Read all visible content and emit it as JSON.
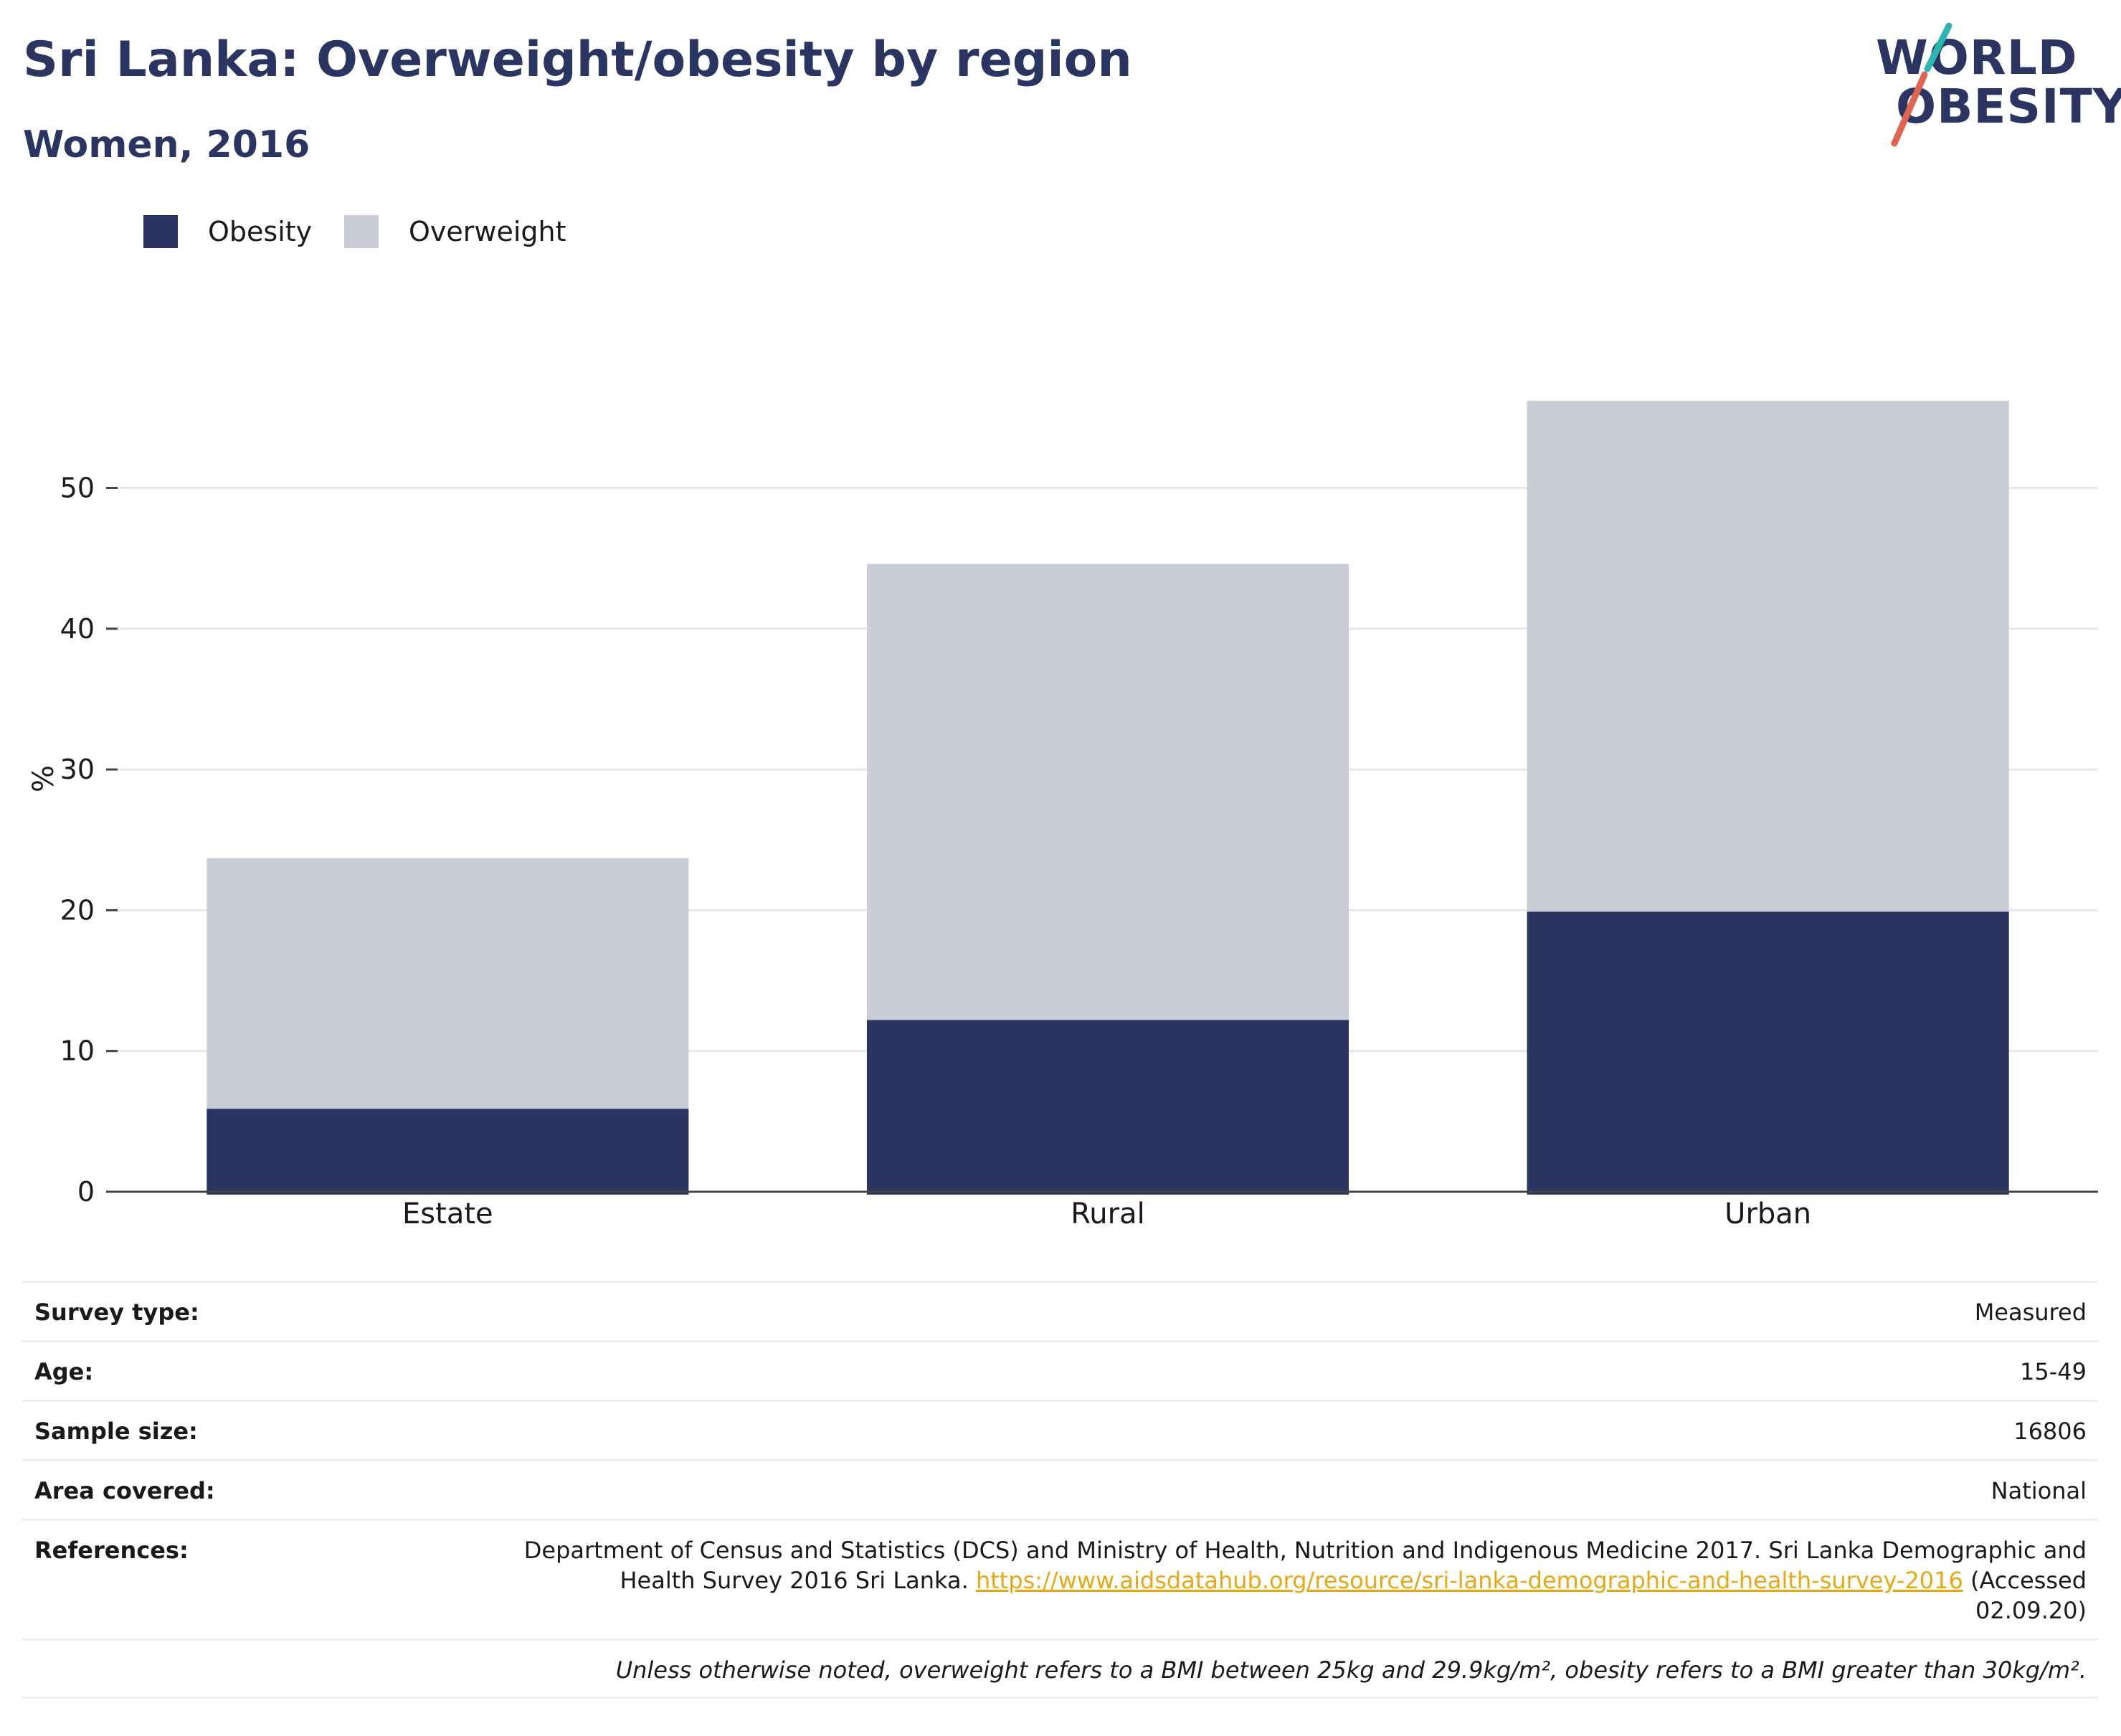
{
  "header": {
    "title": "Sri Lanka: Overweight/obesity by region",
    "subtitle": "Women, 2016"
  },
  "logo": {
    "line1": "WORLD",
    "line2": "OBESITY"
  },
  "colors": {
    "obesity": "#2b3561",
    "overweight": "#caccd8",
    "title": "#2b3561",
    "link": "#e6a817",
    "logo_teal": "#2fb5b0",
    "logo_red": "#e06550"
  },
  "chart_data": {
    "type": "bar",
    "stacked": true,
    "categories": [
      "Estate",
      "Rural",
      "Urban"
    ],
    "series": [
      {
        "name": "Obesity",
        "values": [
          5.9,
          12.2,
          19.9
        ],
        "color": "#2b3561"
      },
      {
        "name": "Overweight",
        "values": [
          17.8,
          32.4,
          36.3
        ],
        "color": "#caccd8"
      }
    ],
    "ylabel": "%",
    "ylim": [
      0,
      60
    ],
    "yticks": [
      0,
      10,
      20,
      30,
      40,
      50
    ],
    "grid": true,
    "legend": "top-left"
  },
  "meta": {
    "survey_type": {
      "label": "Survey type:",
      "value": "Measured"
    },
    "age": {
      "label": "Age:",
      "value": "15-49"
    },
    "sample_size": {
      "label": "Sample size:",
      "value": "16806"
    },
    "area": {
      "label": "Area covered:",
      "value": "National"
    },
    "references": {
      "label": "References:",
      "text_before": "Department of Census and Statistics (DCS) and Ministry of Health, Nutrition and Indigenous Medicine 2017. Sri Lanka Demographic and Health Survey 2016 Sri Lanka. ",
      "link": "https://www.aidsdatahub.org/resource/sri-lanka-demographic-and-health-survey-2016",
      "text_after": " (Accessed 02.09.20)"
    },
    "note": "Unless otherwise noted, overweight refers to a BMI between 25kg and 29.9kg/m², obesity refers to a BMI greater than 30kg/m²."
  }
}
